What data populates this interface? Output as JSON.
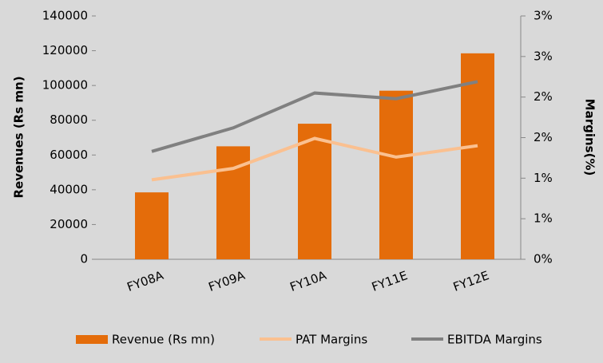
{
  "chart_data": {
    "type": "bar_line",
    "categories": [
      "FY08A",
      "FY09A",
      "FY10A",
      "FY11E",
      "FY12E"
    ],
    "y_axis_label": "Revenues (Rs mn)",
    "y2_axis_label": "Margins(%)",
    "ylim": [
      0,
      140000
    ],
    "yticks": [
      0,
      20000,
      40000,
      60000,
      80000,
      100000,
      120000,
      140000
    ],
    "y2lim": [
      0,
      3.0
    ],
    "y2ticks": [
      {
        "value": 0,
        "label": "0%"
      },
      {
        "value": 0.5,
        "label": "1%"
      },
      {
        "value": 1.0,
        "label": "1%"
      },
      {
        "value": 1.5,
        "label": "2%"
      },
      {
        "value": 2.0,
        "label": "2%"
      },
      {
        "value": 2.5,
        "label": "3%"
      },
      {
        "value": 3.0,
        "label": "3%"
      }
    ],
    "legend": "bottom",
    "series": [
      {
        "name": "Revenue (Rs mn)",
        "type": "bar",
        "color": "#e46c0a",
        "values": [
          38500,
          65000,
          78000,
          97000,
          118500
        ]
      },
      {
        "name": "PAT Margins",
        "type": "line",
        "axis": "y2",
        "color": "#fac090",
        "values": [
          0.98,
          1.12,
          1.49,
          1.26,
          1.4
        ]
      },
      {
        "name": "EBITDA Margins",
        "type": "line",
        "axis": "y2",
        "color": "#808080",
        "values": [
          1.33,
          1.62,
          2.05,
          1.98,
          2.19
        ]
      }
    ]
  }
}
